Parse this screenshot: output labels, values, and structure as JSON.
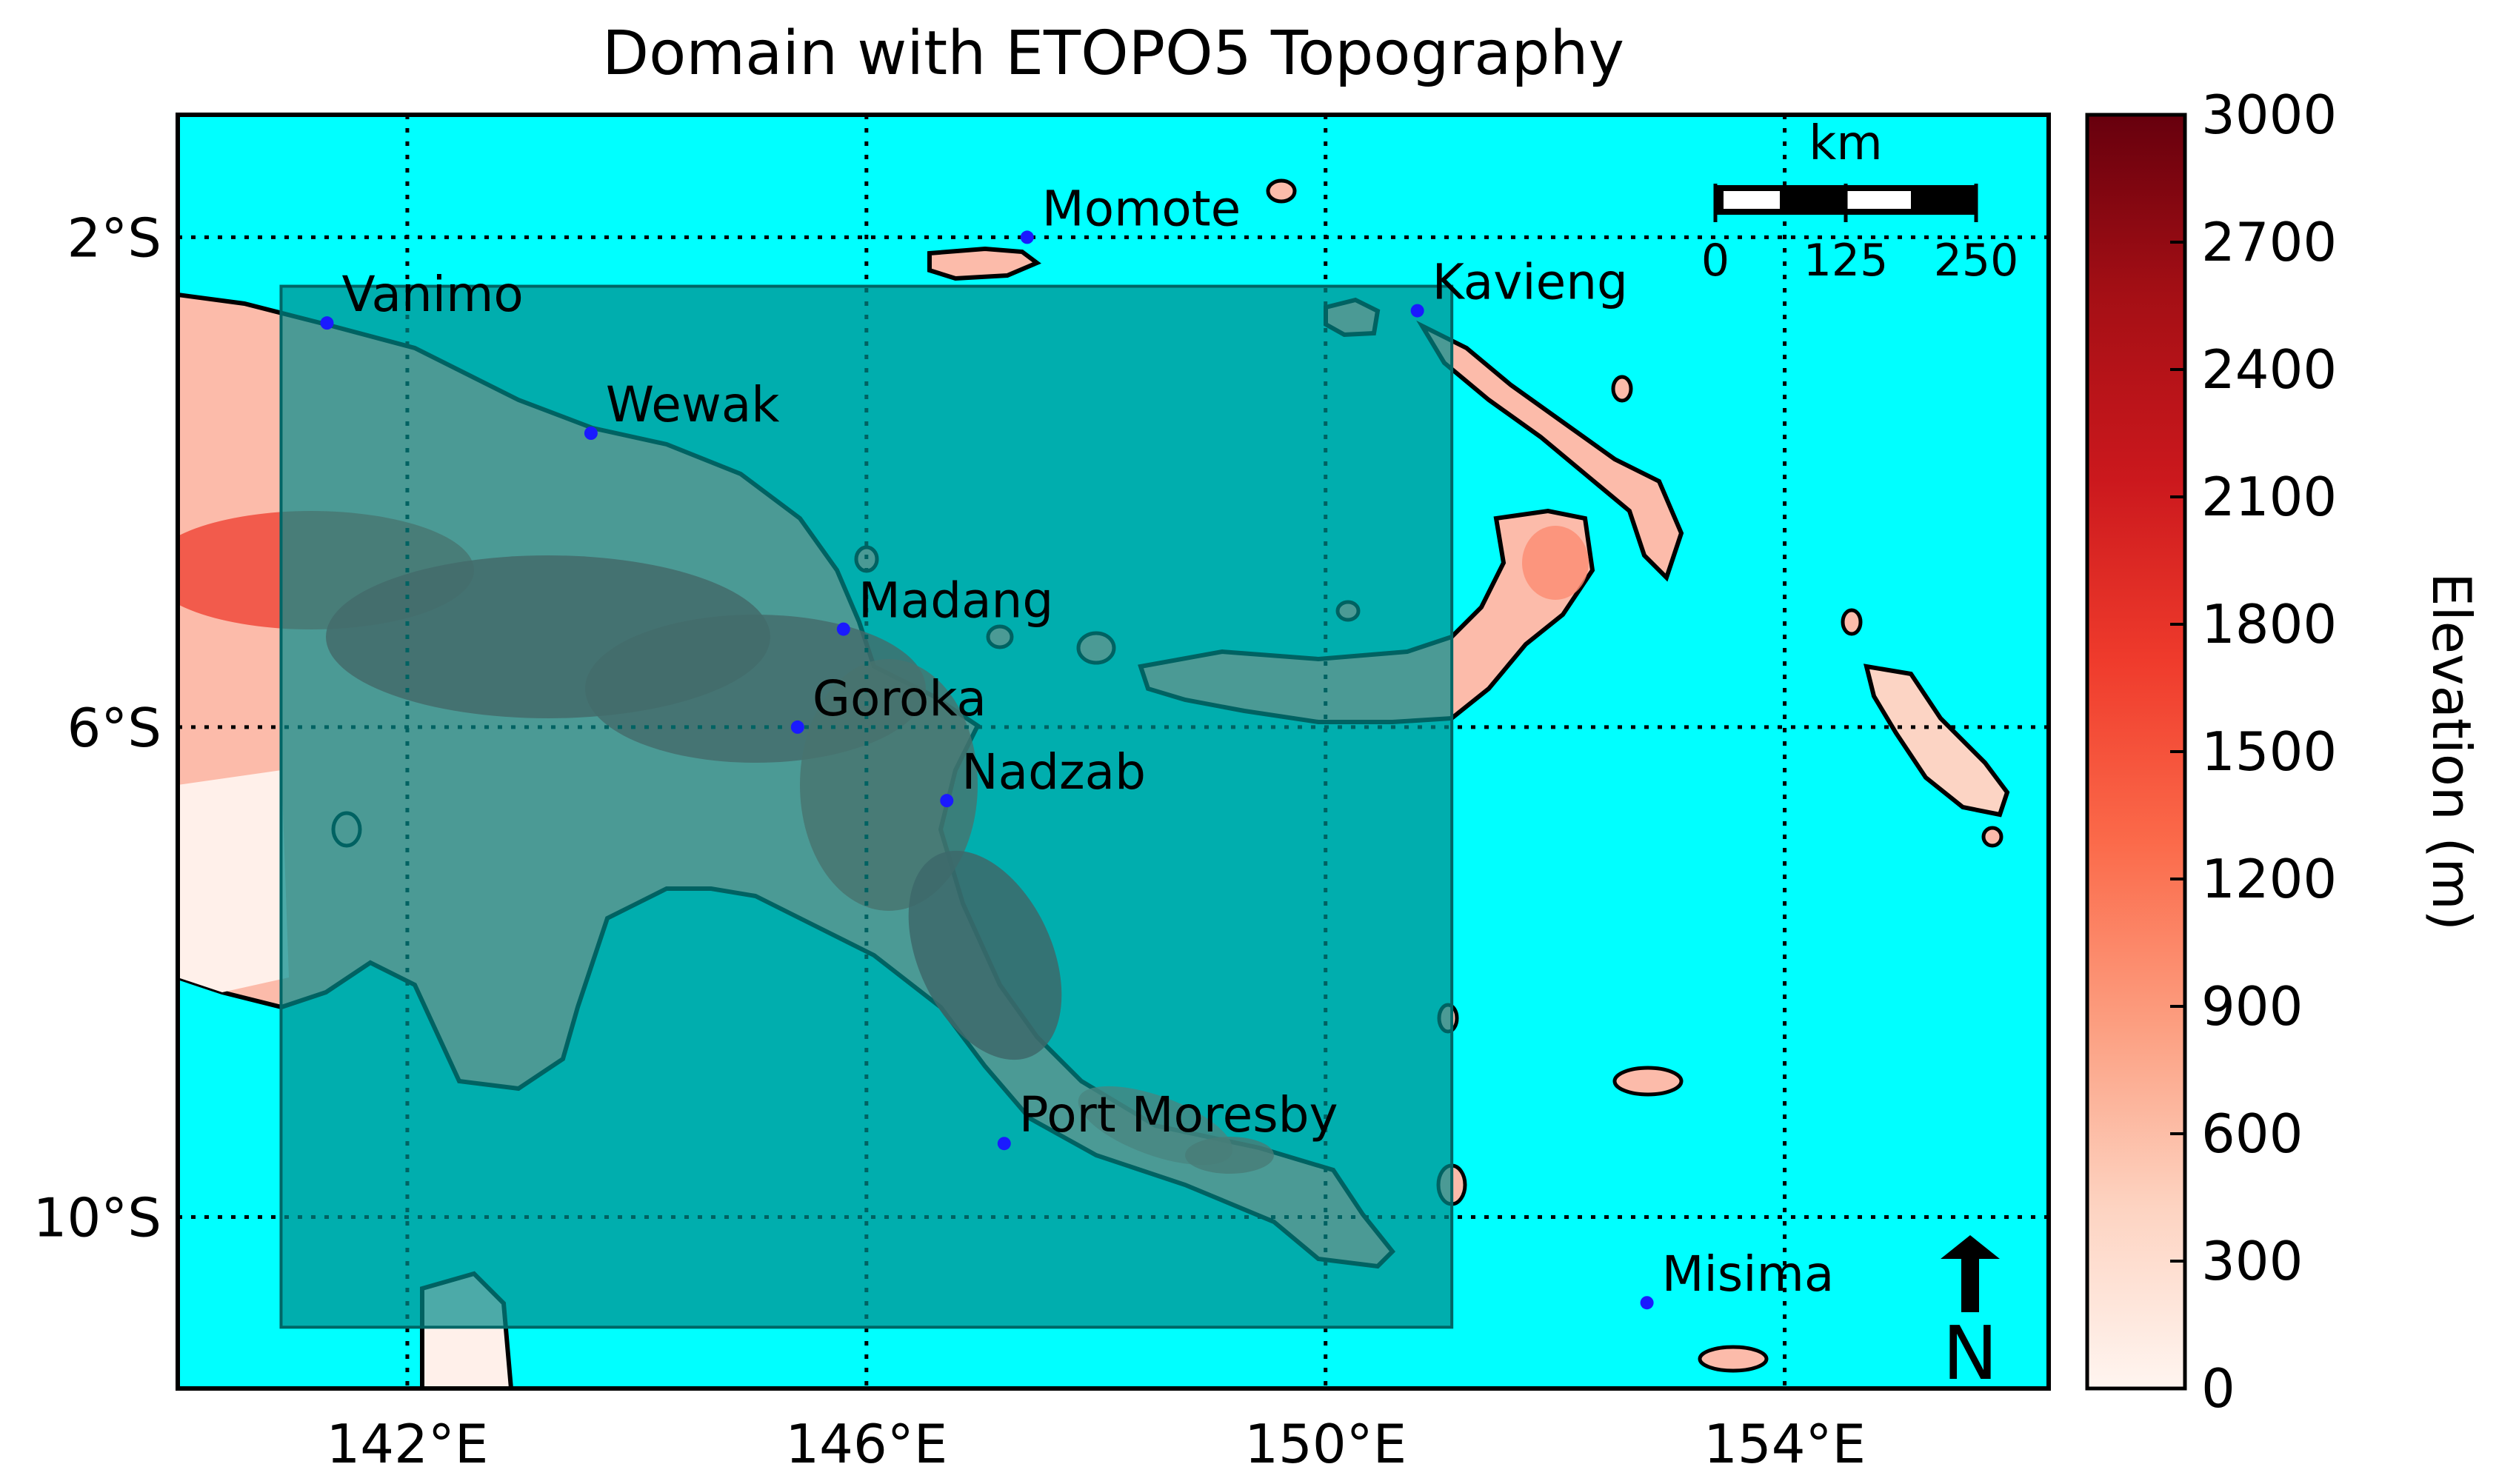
{
  "title": "Domain with ETOPO5 Topography",
  "colors": {
    "ocean": "#00ffff",
    "domain_box": "#008b8b",
    "coastline": "#000000",
    "station_dot": "#1a1aff"
  },
  "map": {
    "projection": "lat-lon",
    "lon_range_deg_E": [
      140.0,
      156.3
    ],
    "lat_range_deg": [
      -11.4,
      -1.0
    ],
    "lon_ticks": [
      {
        "value": 142,
        "label": "142°E"
      },
      {
        "value": 146,
        "label": "146°E"
      },
      {
        "value": 150,
        "label": "150°E"
      },
      {
        "value": 154,
        "label": "154°E"
      }
    ],
    "lat_ticks": [
      {
        "value": -2,
        "label": "2°S"
      },
      {
        "value": -6,
        "label": "6°S"
      },
      {
        "value": -10,
        "label": "10°S"
      }
    ],
    "gridlines": "dotted",
    "domain_box_deg": {
      "lon_min": 140.9,
      "lon_max": 151.1,
      "lat_min": -10.9,
      "lat_max": -2.4
    }
  },
  "stations": [
    {
      "name": "Vanimo",
      "lon": 141.3,
      "lat": -2.7
    },
    {
      "name": "Wewak",
      "lon": 143.6,
      "lat": -3.6
    },
    {
      "name": "Madang",
      "lon": 145.8,
      "lat": -5.2
    },
    {
      "name": "Goroka",
      "lon": 145.4,
      "lat": -6.0
    },
    {
      "name": "Nadzab",
      "lon": 146.7,
      "lat": -6.6
    },
    {
      "name": "Momote",
      "lon": 147.4,
      "lat": -2.0
    },
    {
      "name": "Kavieng",
      "lon": 150.8,
      "lat": -2.6
    },
    {
      "name": "Port Moresby",
      "lon": 147.2,
      "lat": -9.4
    },
    {
      "name": "Misima",
      "lon": 152.8,
      "lat": -10.7
    }
  ],
  "scale_bar": {
    "unit": "km",
    "labels": [
      "0",
      "125",
      "250"
    ]
  },
  "north_arrow": {
    "label": "N"
  },
  "colorbar": {
    "label": "Elevation (m)",
    "min": 0,
    "max": 3000,
    "ticks": [
      "0",
      "300",
      "600",
      "900",
      "1200",
      "1500",
      "1800",
      "2100",
      "2400",
      "2700",
      "3000"
    ],
    "colors": [
      "#fff5f0",
      "#fdd3c1",
      "#fc9e80",
      "#fb6a4a",
      "#ef3b2c",
      "#cb181d",
      "#a50f15",
      "#67000d"
    ]
  }
}
